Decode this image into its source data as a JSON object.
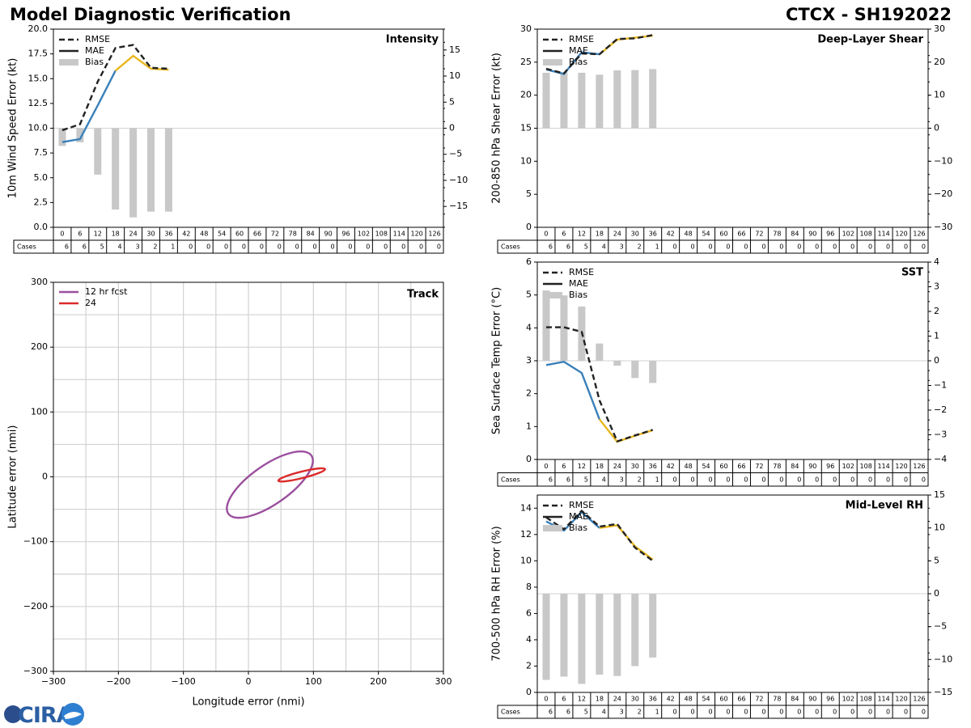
{
  "header": {
    "title": "Model Diagnostic Verification",
    "storm": "CTCX - SH192022"
  },
  "logo": {
    "text": "CIRA"
  },
  "colors": {
    "rmse": "#222222",
    "early": "#3a80b9",
    "late": "#e8b71e",
    "bias": "#c8c8c8",
    "track12": "#9b4f9e",
    "track24": "#dc2a2a",
    "grid": "#d2d2d2"
  },
  "cases_label": "Cases",
  "hours": [
    "0",
    "6",
    "12",
    "18",
    "24",
    "30",
    "36",
    "42",
    "48",
    "54",
    "60",
    "66",
    "72",
    "78",
    "84",
    "90",
    "96",
    "102",
    "108",
    "114",
    "120",
    "126"
  ],
  "cases": [
    "6",
    "6",
    "5",
    "4",
    "3",
    "2",
    "1",
    "0",
    "0",
    "0",
    "0",
    "0",
    "0",
    "0",
    "0",
    "0",
    "0",
    "0",
    "0",
    "0",
    "0",
    "0"
  ],
  "chart_data": [
    {
      "type": "line",
      "title": "Intensity",
      "ylabel": "10m Wind Speed Error (kt)",
      "ylim": [
        0,
        20
      ],
      "yticks": [
        "0.0",
        "2.5",
        "5.0",
        "7.5",
        "10.0",
        "12.5",
        "15.0",
        "17.5",
        "20.0"
      ],
      "y2lim": [
        -19,
        19
      ],
      "y2ticks": [
        "−15",
        "−10",
        "−5",
        "0",
        "5",
        "10",
        "15"
      ],
      "legend": [
        "RMSE",
        "MAE",
        "Bias"
      ],
      "x": [
        0,
        6,
        12,
        18,
        24,
        30,
        36
      ],
      "rmse": [
        9.8,
        10.4,
        14.7,
        18.1,
        18.4,
        16.1,
        16.0
      ],
      "mae": [
        8.6,
        8.9,
        12.3,
        15.8,
        17.3,
        16.0,
        15.9
      ],
      "bias": [
        -3.4,
        -2.7,
        -8.9,
        -15.6,
        -17.1,
        -16.0,
        -16.0
      ]
    },
    {
      "type": "line",
      "title": "Deep-Layer Shear",
      "ylabel": "200-850 hPa Shear Error (kt)",
      "ylim": [
        0,
        30
      ],
      "yticks": [
        "0",
        "5",
        "10",
        "15",
        "20",
        "25",
        "30"
      ],
      "y2lim": [
        -30,
        30
      ],
      "y2ticks": [
        "−30",
        "−20",
        "−10",
        "0",
        "10",
        "20",
        "30"
      ],
      "legend": [
        "RMSE",
        "MAE",
        "Bias"
      ],
      "x": [
        0,
        6,
        12,
        18,
        24,
        30,
        36
      ],
      "rmse": [
        24.0,
        23.3,
        26.3,
        26.2,
        28.5,
        28.6,
        29.1
      ],
      "mae": [
        23.9,
        23.2,
        26.5,
        26.2,
        28.4,
        28.7,
        29.0
      ],
      "bias": [
        16.8,
        17.0,
        16.8,
        16.2,
        17.5,
        17.6,
        17.9
      ]
    },
    {
      "type": "line",
      "title": "SST",
      "ylabel": "Sea Surface Temp Error (°C)",
      "ylim": [
        0,
        6
      ],
      "yticks": [
        "0",
        "1",
        "2",
        "3",
        "4",
        "5",
        "6"
      ],
      "y2lim": [
        -4,
        4
      ],
      "y2ticks": [
        "−4",
        "−3",
        "−2",
        "−1",
        "0",
        "1",
        "2",
        "3",
        "4"
      ],
      "legend": [
        "RMSE",
        "MAE",
        "Bias"
      ],
      "x": [
        0,
        6,
        12,
        18,
        24,
        30,
        36
      ],
      "rmse": [
        4.02,
        4.02,
        3.88,
        1.8,
        0.55,
        0.73,
        0.9
      ],
      "mae": [
        2.87,
        2.97,
        2.63,
        1.22,
        0.54,
        0.72,
        0.89
      ],
      "bias": [
        2.85,
        2.65,
        2.2,
        0.7,
        -0.2,
        -0.7,
        -0.9
      ]
    },
    {
      "type": "line",
      "title": "Mid-Level RH",
      "ylabel": "700-500 hPa RH Error (%)",
      "ylim": [
        0,
        15
      ],
      "yticks": [
        "0",
        "2",
        "4",
        "6",
        "8",
        "10",
        "12",
        "14"
      ],
      "y2lim": [
        -15,
        15
      ],
      "y2ticks": [
        "−15",
        "−10",
        "−5",
        "0",
        "5",
        "10",
        "15"
      ],
      "legend": [
        "RMSE",
        "MAE",
        "Bias"
      ],
      "x": [
        0,
        6,
        12,
        18,
        24,
        30,
        36
      ],
      "rmse": [
        13.3,
        12.4,
        13.8,
        12.6,
        12.8,
        11.0,
        10.0
      ],
      "mae": [
        13.0,
        12.3,
        13.7,
        12.5,
        12.7,
        11.1,
        10.1
      ],
      "bias": [
        -13.1,
        -12.6,
        -13.7,
        -12.3,
        -12.5,
        -11.0,
        -9.7
      ]
    },
    {
      "type": "scatter",
      "title": "Track",
      "xlabel": "Longitude error (nmi)",
      "ylabel": "Latitude error (nmi)",
      "xlim": [
        -300,
        300
      ],
      "ylim": [
        -300,
        300
      ],
      "xticks": [
        "−300",
        "−200",
        "−100",
        "0",
        "100",
        "200",
        "300"
      ],
      "yticks": [
        "−300",
        "−200",
        "−100",
        "0",
        "100",
        "200",
        "300"
      ],
      "legend": [
        "12 hr fcst",
        "24"
      ],
      "ellipses": [
        {
          "name": "12 hr fcst",
          "cx": 33,
          "cy": -12,
          "rx": 78,
          "ry": 30,
          "angle_deg": 35
        },
        {
          "name": "24",
          "cx": 82,
          "cy": 3,
          "rx": 37,
          "ry": 5,
          "angle_deg": 14
        }
      ]
    }
  ]
}
